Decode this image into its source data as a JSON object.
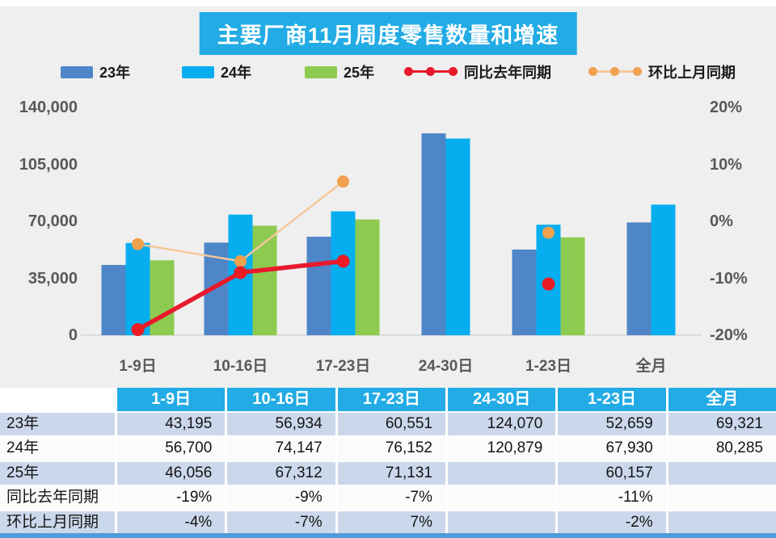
{
  "title": "主要厂商11月周度零售数量和增速",
  "ui_colors": {
    "accent_cyan": "#22ABE4",
    "table_stripe": "#CBD8EB",
    "table_row_white": "#FBFBFB",
    "axis_text": "#595959",
    "baseline": "#DCDCDC",
    "bottom_strip": "#4F9BD9"
  },
  "legend": [
    {
      "label": "23年",
      "type": "bar",
      "color": "#4E86C8"
    },
    {
      "label": "24年",
      "type": "bar",
      "color": "#06AEEF"
    },
    {
      "label": "25年",
      "type": "bar",
      "color": "#8DCB50"
    },
    {
      "label": "同比去年同期",
      "type": "line",
      "color": "#E8192C",
      "dot_color": "#E8192C"
    },
    {
      "label": "环比上月同期",
      "type": "line",
      "color": "#F6C79A",
      "dot_color": "#F0A14F"
    }
  ],
  "chart_data": {
    "type": "bar+line",
    "categories": [
      "1-9日",
      "10-16日",
      "17-23日",
      "24-30日",
      "1-23日",
      "全月"
    ],
    "bar_series": [
      {
        "name": "23年",
        "color": "#4E86C8",
        "values": [
          43195,
          56934,
          60551,
          124070,
          52659,
          69321
        ]
      },
      {
        "name": "24年",
        "color": "#06AEEF",
        "values": [
          56700,
          74147,
          76152,
          120879,
          67930,
          80285
        ]
      },
      {
        "name": "25年",
        "color": "#8DCB50",
        "values": [
          46056,
          67312,
          71131,
          null,
          60157,
          null
        ]
      }
    ],
    "line_series": [
      {
        "name": "环比上月同期",
        "line_color": "#F6C79A",
        "dot_color": "#F0A14F",
        "stroke_width": 2.5,
        "dot_r": 7.5,
        "values_pct": [
          -4,
          -7,
          7,
          null,
          -2,
          null
        ]
      },
      {
        "name": "同比去年同期",
        "line_color": "#E8192C",
        "dot_color": "#EB1C24",
        "stroke_width": 5.5,
        "dot_r": 8,
        "values_pct": [
          -19,
          -9,
          -7,
          null,
          -11,
          null
        ]
      }
    ],
    "left_axis": {
      "title": "",
      "min": 0,
      "max": 140000,
      "tick_labels": [
        "140,000",
        "105,000",
        "70,000",
        "35,000",
        "0"
      ]
    },
    "right_axis": {
      "title": "",
      "min": -20,
      "max": 20,
      "tick_labels": [
        "20%",
        "10%",
        "0%",
        "-10%",
        "-20%"
      ]
    },
    "grid": "baseline-only",
    "legend_position": "top"
  },
  "table": {
    "header": [
      "",
      "1-9日",
      "10-16日",
      "17-23日",
      "24-30日",
      "1-23日",
      "全月"
    ],
    "rows": [
      {
        "label": "23年",
        "cells": [
          "43,195",
          "56,934",
          "60,551",
          "124,070",
          "52,659",
          "69,321"
        ]
      },
      {
        "label": "24年",
        "cells": [
          "56,700",
          "74,147",
          "76,152",
          "120,879",
          "67,930",
          "80,285"
        ]
      },
      {
        "label": "25年",
        "cells": [
          "46,056",
          "67,312",
          "71,131",
          "",
          "60,157",
          ""
        ]
      },
      {
        "label": "同比去年同期",
        "cells": [
          "-19%",
          "-9%",
          "-7%",
          "",
          "-11%",
          ""
        ]
      },
      {
        "label": "环比上月同期",
        "cells": [
          "-4%",
          "-7%",
          "7%",
          "",
          "-2%",
          ""
        ]
      }
    ]
  }
}
